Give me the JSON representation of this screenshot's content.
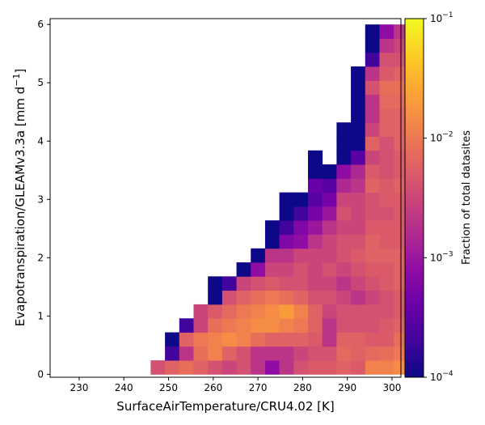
{
  "chart_data": {
    "type": "heatmap",
    "xlabel": "SurfaceAirTemperature/CRU4.02 [K]",
    "ylabel": "Evapotranspiration/GLEAMv3.3a [mm d",
    "ylabel_sup": "−1",
    "ylabel_end": "]",
    "colorbar_label": "Fraction of total datasites",
    "colorbar_scale": "log",
    "colorbar_range": [
      0.0001,
      0.1
    ],
    "colormap": "plasma",
    "colorbar_ticks": [
      {
        "value": 0.1,
        "base": "10",
        "exp": "−1"
      },
      {
        "value": 0.01,
        "base": "10",
        "exp": "−2"
      },
      {
        "value": 0.001,
        "base": "10",
        "exp": "−3"
      },
      {
        "value": 0.0001,
        "base": "10",
        "exp": "−4"
      }
    ],
    "xlim": [
      223.5,
      302
    ],
    "ylim": [
      -0.05,
      6.1
    ],
    "xticks": [
      "230",
      "240",
      "250",
      "260",
      "270",
      "280",
      "290",
      "300"
    ],
    "xtick_values": [
      230,
      240,
      250,
      260,
      270,
      280,
      290,
      300
    ],
    "yticks": [
      "0",
      "1",
      "2",
      "3",
      "4",
      "5",
      "6"
    ],
    "ytick_values": [
      0,
      1,
      2,
      3,
      4,
      5,
      6
    ],
    "bin_x_start": 246,
    "bin_width_x": 3.2,
    "bin_y_start": 0,
    "bin_height_y": 0.24,
    "columns": [
      {
        "x0": 246.0,
        "cells": [
          0.004
        ]
      },
      {
        "x0": 249.2,
        "cells": [
          0.006,
          0.0002,
          0.0001
        ]
      },
      {
        "x0": 252.4,
        "cells": [
          0.008,
          0.002,
          0.006,
          0.0002
        ]
      },
      {
        "x0": 255.6,
        "cells": [
          0.006,
          0.008,
          0.01,
          0.003,
          0.003
        ]
      },
      {
        "x0": 258.8,
        "cells": [
          0.004,
          0.012,
          0.012,
          0.008,
          0.005,
          0.0001,
          0.0001
        ]
      },
      {
        "x0": 262.0,
        "cells": [
          0.003,
          0.006,
          0.015,
          0.01,
          0.007,
          0.004,
          0.0002
        ]
      },
      {
        "x0": 265.2,
        "cells": [
          0.004,
          0.004,
          0.012,
          0.012,
          0.01,
          0.006,
          0.003,
          0.0001
        ]
      },
      {
        "x0": 268.4,
        "cells": [
          0.002,
          0.002,
          0.008,
          0.015,
          0.012,
          0.008,
          0.004,
          0.0008,
          0.0001
        ]
      },
      {
        "x0": 271.6,
        "cells": [
          0.0008,
          0.002,
          0.006,
          0.015,
          0.015,
          0.01,
          0.005,
          0.003,
          0.002,
          0.0001,
          0.0001
        ]
      },
      {
        "x0": 274.8,
        "cells": [
          0.002,
          0.002,
          0.006,
          0.012,
          0.02,
          0.008,
          0.004,
          0.003,
          0.002,
          0.0006,
          0.0002,
          0.0001,
          0.0001
        ]
      },
      {
        "x0": 278.0,
        "cells": [
          0.004,
          0.003,
          0.006,
          0.01,
          0.012,
          0.006,
          0.004,
          0.004,
          0.003,
          0.0008,
          0.0006,
          0.0002,
          0.0001
        ]
      },
      {
        "x0": 281.2,
        "cells": [
          0.005,
          0.004,
          0.005,
          0.006,
          0.006,
          0.004,
          0.003,
          0.003,
          0.003,
          0.002,
          0.001,
          0.0005,
          0.0003,
          0.0004,
          0.0001,
          0.0001
        ]
      },
      {
        "x0": 284.4,
        "cells": [
          0.005,
          0.004,
          0.002,
          0.002,
          0.003,
          0.004,
          0.003,
          0.004,
          0.003,
          0.003,
          0.002,
          0.001,
          0.0005,
          0.0003,
          0.0001
        ]
      },
      {
        "x0": 287.6,
        "cells": [
          0.006,
          0.007,
          0.006,
          0.004,
          0.004,
          0.003,
          0.002,
          0.003,
          0.004,
          0.004,
          0.003,
          0.004,
          0.003,
          0.0015,
          0.0008,
          0.0001,
          0.0001,
          0.0001
        ]
      },
      {
        "x0": 290.8,
        "cells": [
          0.005,
          0.006,
          0.006,
          0.004,
          0.004,
          0.002,
          0.003,
          0.004,
          0.005,
          0.004,
          0.003,
          0.003,
          0.003,
          0.002,
          0.0015,
          0.0003,
          0.0001,
          0.0001,
          0.0001,
          0.0001,
          0.0001,
          0.0001
        ]
      },
      {
        "x0": 294.0,
        "cells": [
          0.012,
          0.007,
          0.005,
          0.004,
          0.004,
          0.003,
          0.004,
          0.005,
          0.006,
          0.006,
          0.005,
          0.004,
          0.004,
          0.006,
          0.005,
          0.003,
          0.006,
          0.003,
          0.002,
          0.002,
          0.004,
          0.002,
          0.0002,
          0.0001,
          0.0001
        ]
      },
      {
        "x0": 297.2,
        "cells": [
          0.012,
          0.008,
          0.005,
          0.005,
          0.004,
          0.004,
          0.005,
          0.005,
          0.006,
          0.005,
          0.005,
          0.004,
          0.005,
          0.005,
          0.004,
          0.004,
          0.004,
          0.006,
          0.006,
          0.007,
          0.008,
          0.005,
          0.004,
          0.002,
          0.0008,
          0.0001
        ]
      },
      {
        "x0": 300.4,
        "cells": [
          0.015,
          0.01,
          0.008,
          0.006,
          0.005,
          0.005,
          0.006,
          0.006,
          0.006,
          0.005,
          0.005,
          0.005,
          0.005,
          0.006,
          0.005,
          0.005,
          0.006,
          0.006,
          0.006,
          0.007,
          0.008,
          0.006,
          0.004,
          0.003,
          0.002,
          0.0001,
          0.0001,
          0.0001,
          0.0001,
          0.0001,
          0.0001
        ]
      }
    ]
  }
}
